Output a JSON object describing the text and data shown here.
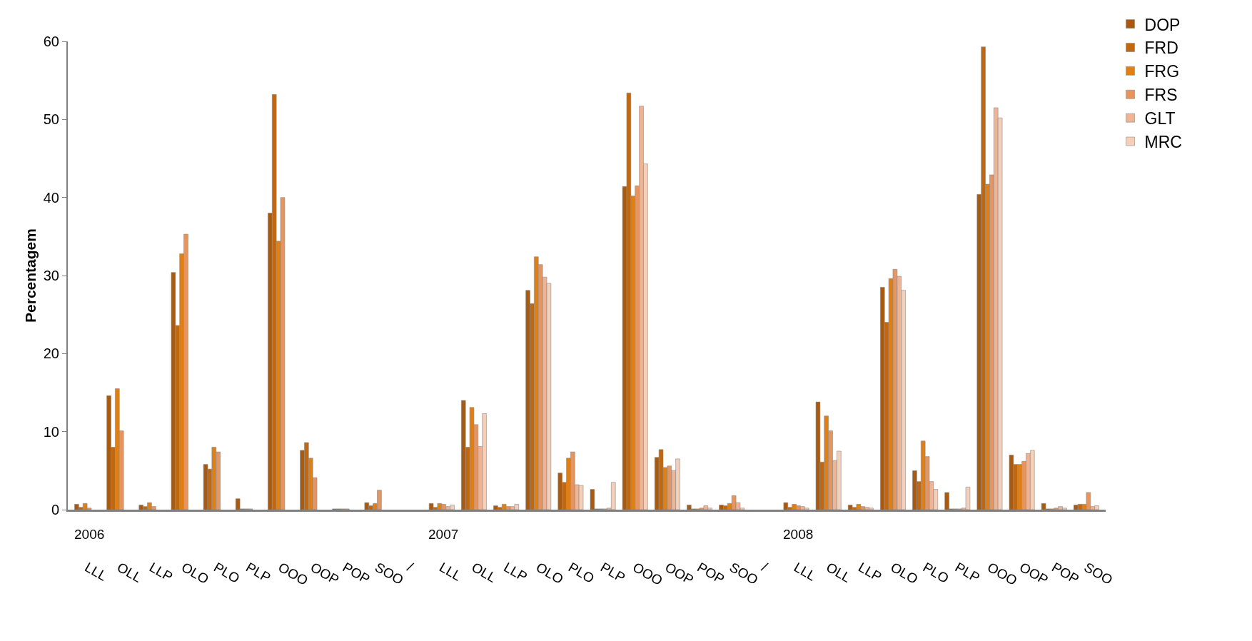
{
  "chart_data": {
    "type": "bar",
    "ylabel": "Percentagem",
    "categories": [
      "LLL",
      "OLL",
      "LLP",
      "OLO",
      "PLO",
      "PLP",
      "OOO",
      "OOP",
      "POP",
      "SOO",
      "/",
      "LLL",
      "OLL",
      "LLP",
      "OLO",
      "PLO",
      "PLP",
      "OOO",
      "OOP",
      "POP",
      "SOO",
      "/",
      "LLL",
      "OLL",
      "LLP",
      "OLO",
      "PLO",
      "PLP",
      "OOO",
      "OOP",
      "POP",
      "SOO"
    ],
    "series": [
      {
        "name": "DOP",
        "color": "#a85a10",
        "values": [
          0.7,
          14.6,
          0.6,
          30.4,
          5.8,
          1.4,
          38.0,
          7.6,
          0.1,
          0.9,
          null,
          0.8,
          14.0,
          0.5,
          28.1,
          4.7,
          2.6,
          41.4,
          6.7,
          0.6,
          0.6,
          null,
          0.9,
          13.8,
          0.6,
          28.5,
          5.0,
          2.2,
          40.4,
          7.0,
          0.8,
          0.6
        ]
      },
      {
        "name": "FRD",
        "color": "#c0670f",
        "values": [
          0.3,
          8.0,
          0.4,
          23.6,
          5.2,
          0.1,
          53.2,
          8.6,
          0.1,
          0.5,
          null,
          0.3,
          8.0,
          0.3,
          26.4,
          3.5,
          0.1,
          53.4,
          7.7,
          0.1,
          0.5,
          null,
          0.3,
          6.1,
          0.3,
          24.0,
          3.6,
          0.1,
          59.3,
          5.8,
          0.1,
          0.7
        ]
      },
      {
        "name": "FRG",
        "color": "#e07f14",
        "values": [
          0.8,
          15.5,
          0.9,
          32.8,
          8.0,
          0.1,
          34.4,
          6.6,
          0.1,
          0.8,
          null,
          0.8,
          13.1,
          0.7,
          32.4,
          6.6,
          0.1,
          40.2,
          5.4,
          0.1,
          0.8,
          null,
          0.7,
          12.0,
          0.7,
          29.6,
          8.8,
          0.1,
          41.7,
          5.8,
          0.1,
          0.7
        ]
      },
      {
        "name": "FRS",
        "color": "#e69560",
        "values": [
          0.2,
          10.1,
          0.4,
          35.3,
          7.4,
          0.1,
          40.0,
          4.1,
          0.1,
          2.5,
          null,
          0.7,
          10.9,
          0.4,
          31.4,
          7.4,
          0.1,
          41.5,
          5.6,
          0.2,
          1.8,
          null,
          0.5,
          10.1,
          0.4,
          30.8,
          6.8,
          0.1,
          42.9,
          6.2,
          0.2,
          2.2
        ]
      },
      {
        "name": "GLT",
        "color": "#eeb494",
        "values": [
          null,
          null,
          null,
          null,
          null,
          null,
          null,
          null,
          null,
          null,
          null,
          0.4,
          8.1,
          0.4,
          29.8,
          3.2,
          0.2,
          51.7,
          5.0,
          0.5,
          0.9,
          null,
          0.4,
          6.3,
          0.3,
          29.9,
          3.6,
          0.2,
          51.5,
          7.2,
          0.4,
          0.4
        ]
      },
      {
        "name": "MRC",
        "color": "#f4d0ba",
        "values": [
          null,
          null,
          null,
          null,
          null,
          null,
          null,
          null,
          null,
          null,
          null,
          0.6,
          12.3,
          0.7,
          29.0,
          3.1,
          3.5,
          44.3,
          6.5,
          0.2,
          0.2,
          null,
          0.2,
          7.5,
          0.2,
          28.1,
          2.6,
          2.9,
          50.2,
          7.6,
          0.2,
          0.5
        ]
      }
    ],
    "ylim": [
      0,
      60
    ],
    "yticks": [
      0,
      10,
      20,
      30,
      40,
      50,
      60
    ],
    "grid": false,
    "legend": "top right",
    "annotations": [
      "2006",
      "2007",
      "2008"
    ]
  }
}
